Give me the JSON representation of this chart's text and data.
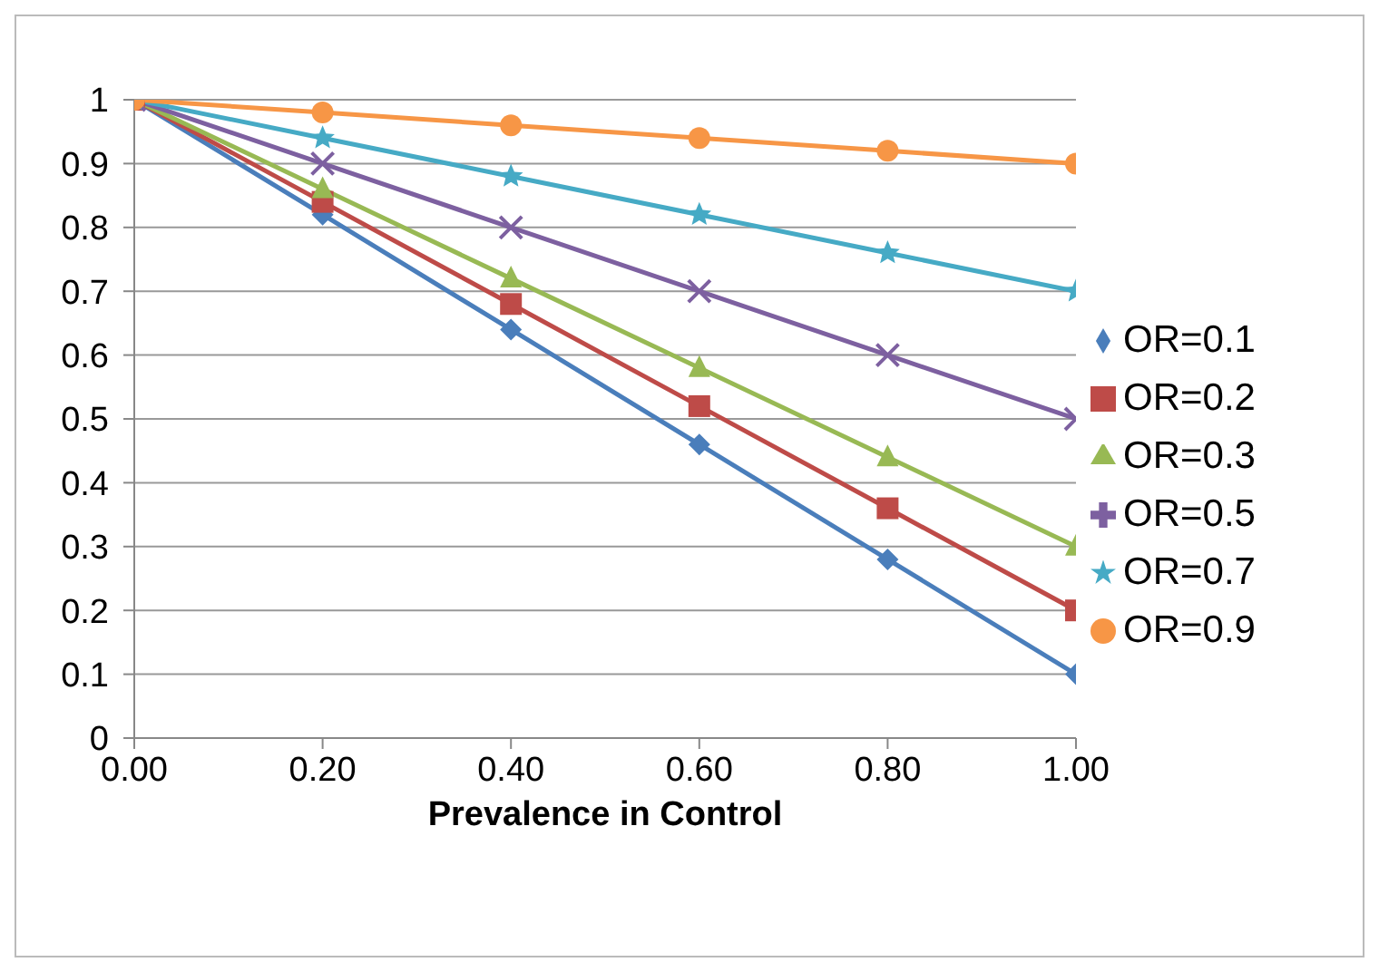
{
  "chart_data": {
    "type": "line",
    "xlabel": "Prevalence in Control",
    "x": [
      0,
      0.2,
      0.4,
      0.6,
      0.8,
      1
    ],
    "xlim": [
      0,
      1
    ],
    "xticks": [
      {
        "value": 0,
        "label": "0.00"
      },
      {
        "value": 0.2,
        "label": "0.20"
      },
      {
        "value": 0.4,
        "label": "0.40"
      },
      {
        "value": 0.6,
        "label": "0.60"
      },
      {
        "value": 0.8,
        "label": "0.80"
      },
      {
        "value": 1,
        "label": "1.00"
      }
    ],
    "ylim": [
      0,
      1
    ],
    "yticks": [
      0,
      0.1,
      0.2,
      0.3,
      0.4,
      0.5,
      0.6,
      0.7,
      0.8,
      0.9,
      1
    ],
    "grid": "y",
    "legend": "right",
    "line_style": "solid",
    "series": [
      {
        "name": "OR=0.1",
        "color": "#4a7ebb",
        "marker": "diamond",
        "values": [
          1,
          0.82,
          0.64,
          0.46,
          0.28,
          0.1
        ]
      },
      {
        "name": "OR=0.2",
        "color": "#be4b48",
        "marker": "square",
        "values": [
          1,
          0.84,
          0.68,
          0.52,
          0.36,
          0.2
        ]
      },
      {
        "name": "OR=0.3",
        "color": "#98b954",
        "marker": "triangle",
        "values": [
          1,
          0.86,
          0.72,
          0.58,
          0.44,
          0.3
        ]
      },
      {
        "name": "OR=0.5",
        "color": "#7d60a0",
        "marker": "cross",
        "values": [
          1,
          0.9,
          0.8,
          0.7,
          0.6,
          0.5
        ]
      },
      {
        "name": "OR=0.7",
        "color": "#46aac5",
        "marker": "star",
        "values": [
          1,
          0.94,
          0.88,
          0.82,
          0.76,
          0.7
        ]
      },
      {
        "name": "OR=0.9",
        "color": "#f79646",
        "marker": "circle",
        "values": [
          1,
          0.98,
          0.96,
          0.94,
          0.92,
          0.9
        ]
      }
    ]
  }
}
